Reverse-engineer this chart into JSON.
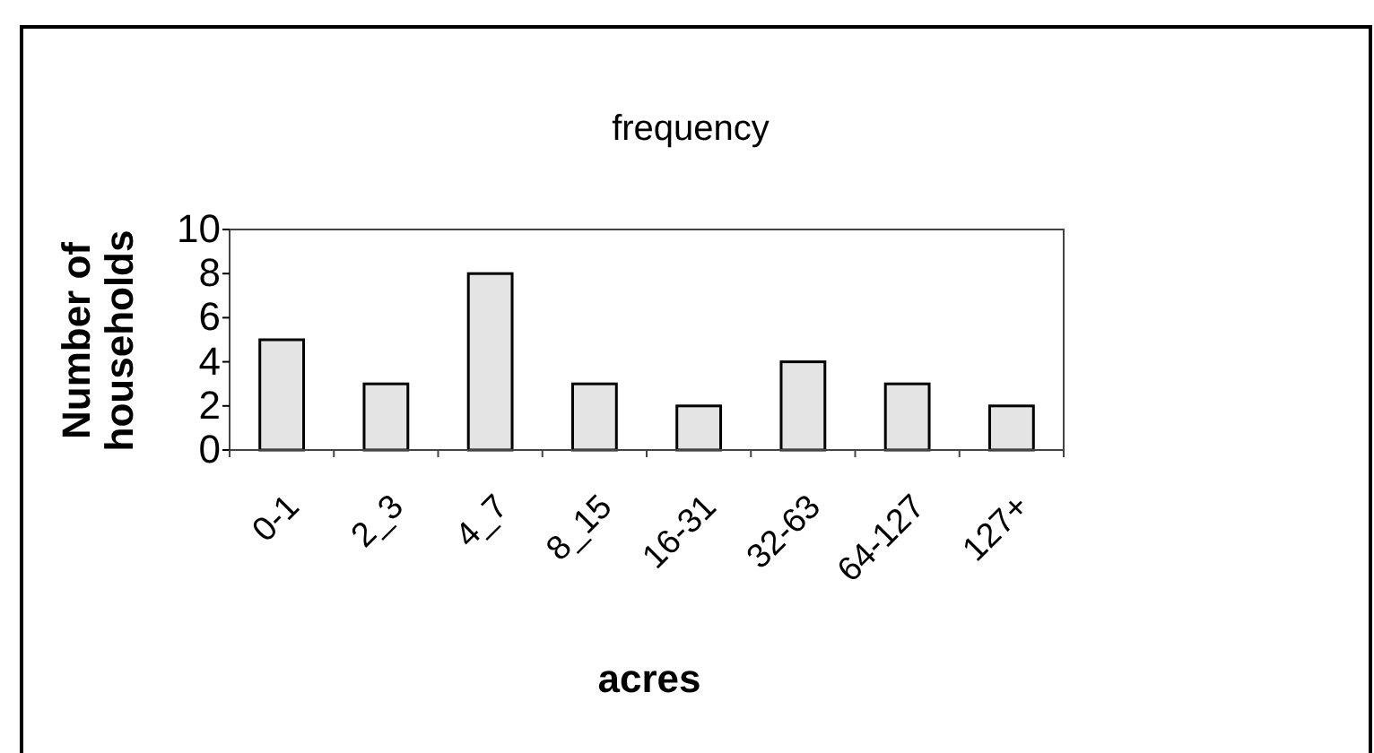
{
  "chart_data": {
    "type": "bar",
    "title": "frequency",
    "xlabel": "acres",
    "ylabel": "Number of households",
    "categories": [
      "0-1",
      "2_3",
      "4_7",
      "8_15",
      "16-31",
      "32-63",
      "64-127",
      "127+"
    ],
    "values": [
      5,
      3,
      8,
      3,
      2,
      4,
      3,
      2
    ],
    "color": "#e4e4e4",
    "ylim": [
      0,
      10
    ],
    "yticks": [
      0,
      2,
      4,
      6,
      8,
      10
    ],
    "grid": false
  }
}
